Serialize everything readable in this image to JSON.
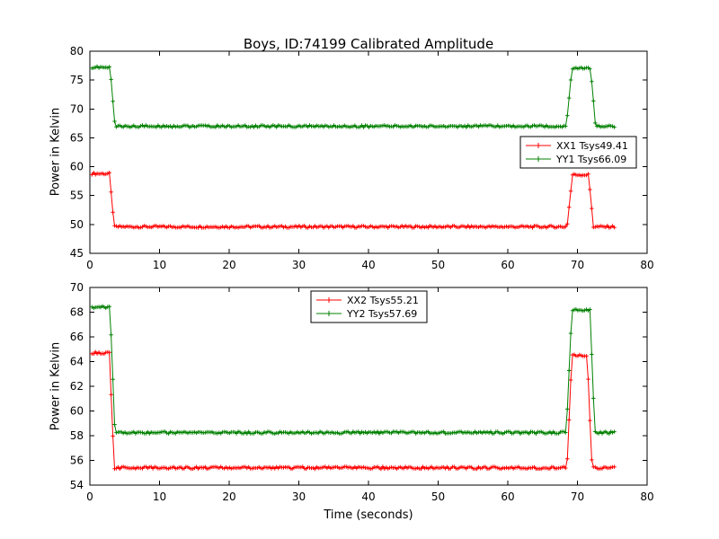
{
  "figure": {
    "title": "Boys, ID:74199 Calibrated Amplitude",
    "background": "#ffffff"
  },
  "chart_data": [
    {
      "type": "line",
      "name": "top-panel",
      "title": "Boys, ID:74199 Calibrated Amplitude",
      "xlabel": "",
      "ylabel": "Power in Kelvin",
      "xlim": [
        0,
        80
      ],
      "ylim": [
        45,
        80
      ],
      "xticks": [
        0,
        10,
        20,
        30,
        40,
        50,
        60,
        70,
        80
      ],
      "yticks": [
        45,
        50,
        55,
        60,
        65,
        70,
        75,
        80
      ],
      "grid": false,
      "sample_dt": 0.25,
      "legend": {
        "position": "right-center",
        "entries": [
          "XX1 Tsys49.41",
          "YY1 Tsys66.09"
        ]
      },
      "series": [
        {
          "name": "XX1 Tsys49.41",
          "color": "#ff0000",
          "marker": "+",
          "x": [
            0.3,
            2.8,
            3.5,
            68.5,
            69.3,
            71.6,
            72.3,
            75.3
          ],
          "y": [
            58.8,
            58.8,
            49.6,
            49.6,
            58.6,
            58.6,
            49.6,
            49.6
          ]
        },
        {
          "name": "YY1 Tsys66.09",
          "color": "#008000",
          "marker": "+",
          "x": [
            0.3,
            2.9,
            3.6,
            68.4,
            69.2,
            71.9,
            72.6,
            75.3
          ],
          "y": [
            77.2,
            77.2,
            67.0,
            67.0,
            77.0,
            77.0,
            67.0,
            67.0
          ]
        }
      ]
    },
    {
      "type": "line",
      "name": "bottom-panel",
      "title": "",
      "xlabel": "Time (seconds)",
      "ylabel": "Power in Kelvin",
      "xlim": [
        0,
        80
      ],
      "ylim": [
        54,
        70
      ],
      "xticks": [
        0,
        10,
        20,
        30,
        40,
        50,
        60,
        70,
        80
      ],
      "yticks": [
        54,
        56,
        58,
        60,
        62,
        64,
        66,
        68,
        70
      ],
      "grid": false,
      "sample_dt": 0.25,
      "legend": {
        "position": "top-center",
        "entries": [
          "XX2 Tsys55.21",
          "YY2 Tsys57.69"
        ]
      },
      "series": [
        {
          "name": "XX2 Tsys55.21",
          "color": "#ff0000",
          "marker": "+",
          "x": [
            0.3,
            2.8,
            3.5,
            68.5,
            69.2,
            71.4,
            72.1,
            75.3
          ],
          "y": [
            64.7,
            64.7,
            55.4,
            55.4,
            64.5,
            64.5,
            55.4,
            55.4
          ]
        },
        {
          "name": "YY2 Tsys57.69",
          "color": "#008000",
          "marker": "+",
          "x": [
            0.3,
            2.9,
            3.6,
            68.4,
            69.2,
            71.8,
            72.5,
            75.3
          ],
          "y": [
            68.4,
            68.4,
            58.25,
            58.25,
            68.2,
            68.2,
            58.25,
            58.25
          ]
        }
      ]
    }
  ]
}
